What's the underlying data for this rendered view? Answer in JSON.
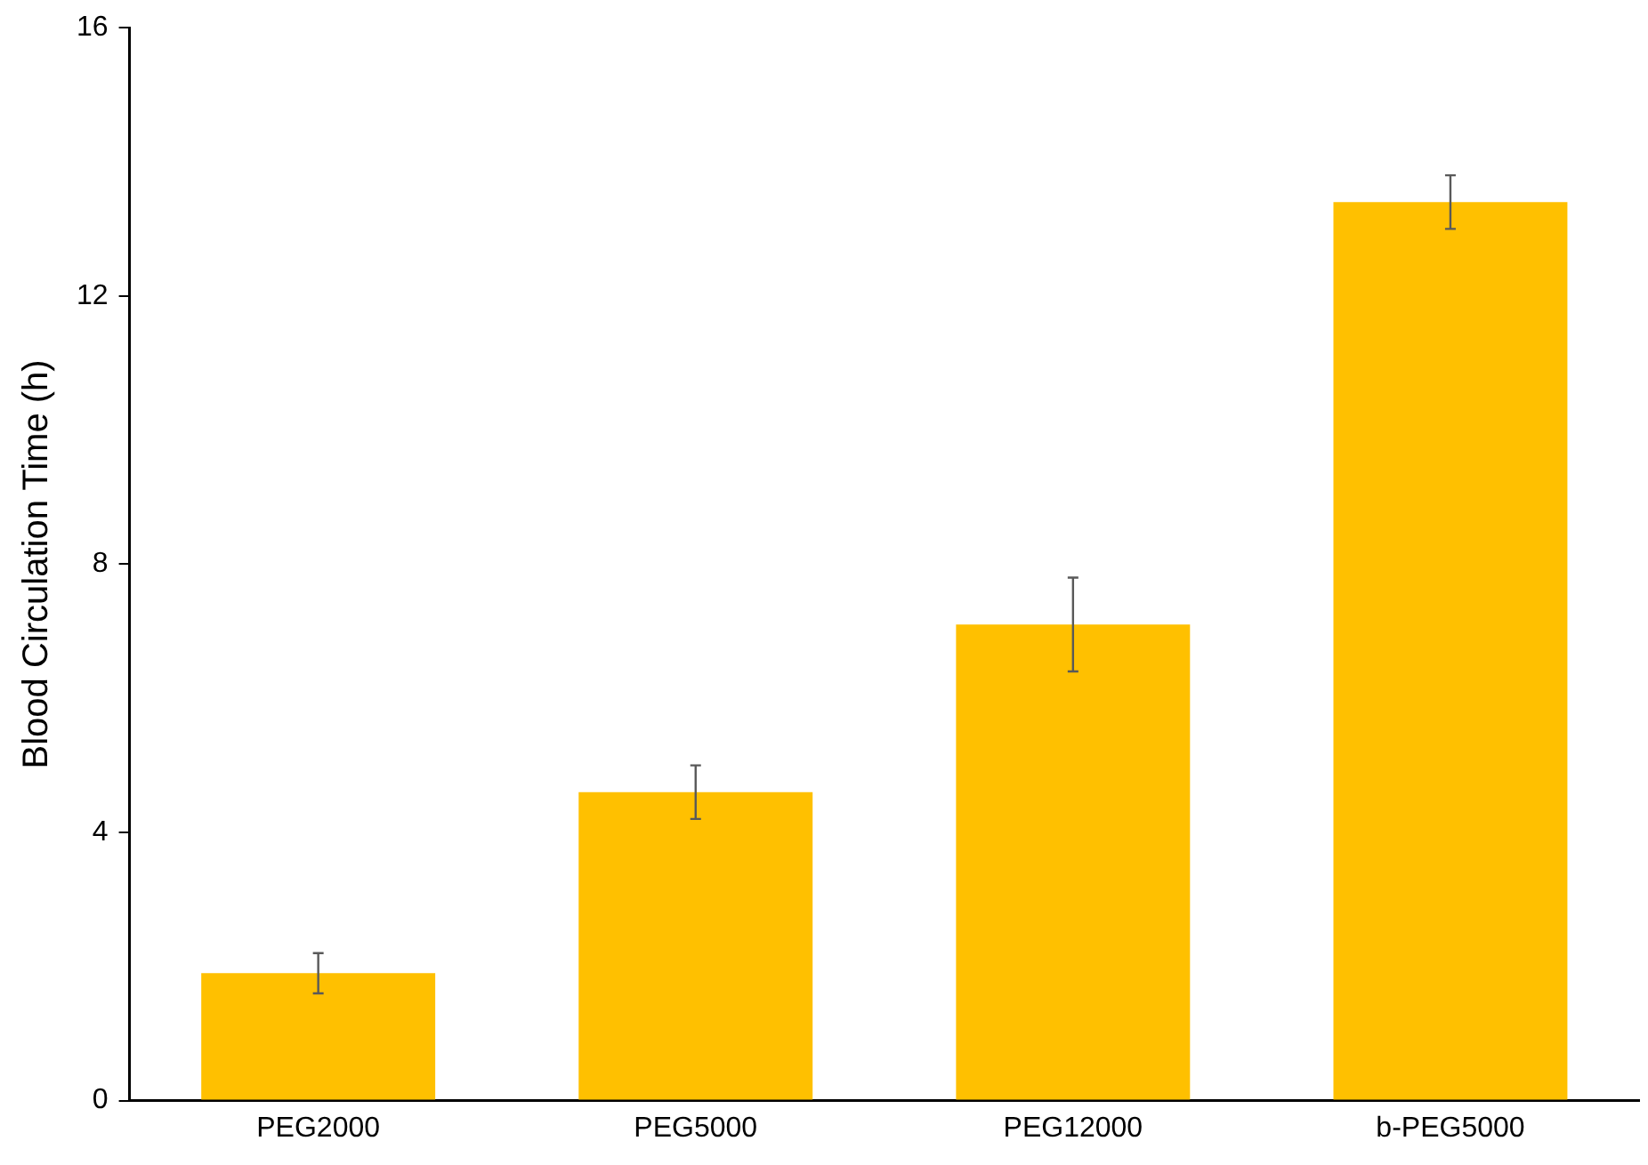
{
  "chart_data": {
    "type": "bar",
    "ylabel": "Blood Circulation Time (h)",
    "categories": [
      "PEG2000",
      "PEG5000",
      "PEG12000",
      "b-PEG5000"
    ],
    "values": [
      1.9,
      4.6,
      7.1,
      13.4
    ],
    "errors": [
      0.3,
      0.4,
      0.7,
      0.4
    ],
    "color": "#ffc000",
    "ylim": [
      0,
      16
    ],
    "yticks": [
      0,
      4,
      8,
      12,
      16
    ],
    "grid": false,
    "legend": false
  }
}
